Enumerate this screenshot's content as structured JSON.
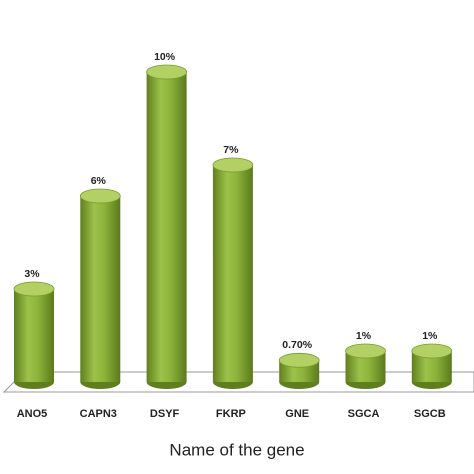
{
  "chart_data": {
    "type": "bar",
    "x_label": "Name of the gene",
    "categories": [
      "ANO5",
      "CAPN3",
      "DSYF",
      "FKRP",
      "GNE",
      "SGCA",
      "SGCB"
    ],
    "values": [
      3,
      6,
      10,
      7,
      0.7,
      1,
      1
    ],
    "value_labels": [
      "3%",
      "6%",
      "10%",
      "7%",
      "0.70%",
      "1%",
      "1%"
    ],
    "color": "#8db33a"
  }
}
